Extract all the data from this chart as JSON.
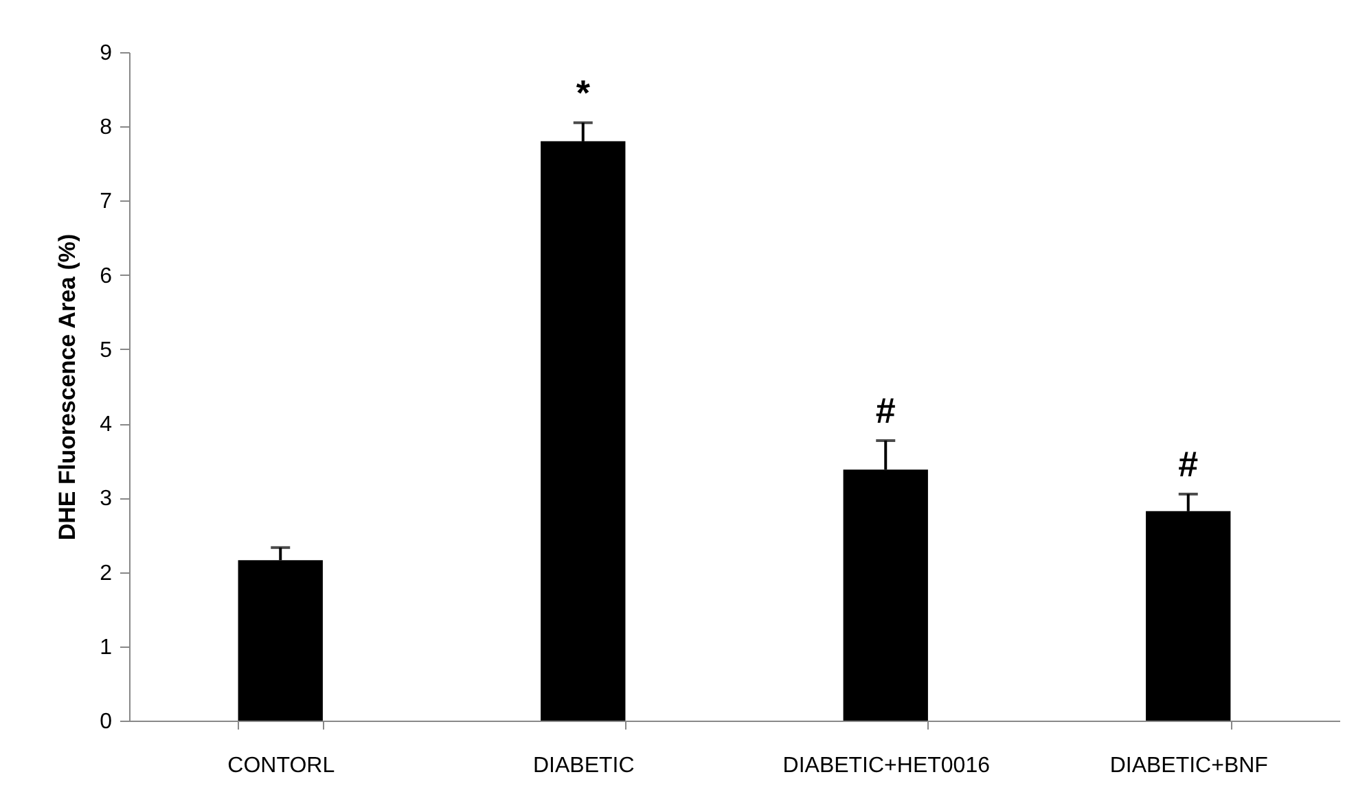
{
  "chart_data": {
    "type": "bar",
    "ylabel": "DHE Fluorescence Area (%)",
    "categories": [
      "CONTORL",
      "DIABETIC",
      "DIABETIC+HET0016",
      "DIABETIC+BNF"
    ],
    "values": [
      2.16,
      7.8,
      3.38,
      2.82
    ],
    "errors": [
      0.17,
      0.25,
      0.39,
      0.23
    ],
    "color": "#000000",
    "ylim": [
      0,
      9
    ],
    "yticks": [
      0,
      1,
      2,
      3,
      4,
      5,
      6,
      7,
      8,
      9
    ],
    "grid": false,
    "annotations": [
      {
        "text": "*",
        "x": "DIABETIC",
        "y": 8.05
      },
      {
        "text": "#",
        "x": "DIABETIC+HET0016",
        "y": 3.77
      },
      {
        "text": "#",
        "x": "DIABETIC+BNF",
        "y": 3.05
      }
    ]
  }
}
